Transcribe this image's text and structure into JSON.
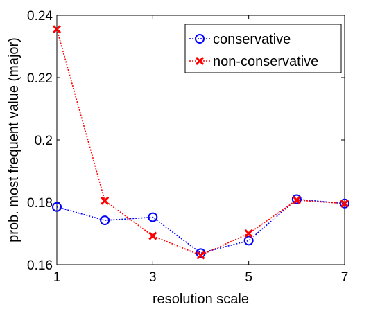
{
  "chart_data": {
    "type": "line",
    "xlabel": "resolution scale",
    "ylabel": "prob. most frequent value (major)",
    "xlim": [
      1,
      7
    ],
    "ylim": [
      0.16,
      0.24
    ],
    "xticks": [
      1,
      3,
      5,
      7
    ],
    "xtick_labels": [
      "1",
      "3",
      "5",
      "7"
    ],
    "yticks": [
      0.16,
      0.18,
      0.2,
      0.22,
      0.24
    ],
    "ytick_labels": [
      "0.16",
      "0.18",
      "0.2",
      "0.22",
      "0.24"
    ],
    "grid": false,
    "legend_position": "top-right",
    "x": [
      1,
      2,
      3,
      4,
      5,
      6,
      7
    ],
    "series": [
      {
        "name": "conservative",
        "values": [
          0.1785,
          0.1742,
          0.1752,
          0.1637,
          0.1677,
          0.181,
          0.1796
        ],
        "color": "#0000ff",
        "marker": "circle"
      },
      {
        "name": "non-conservative",
        "values": [
          0.2355,
          0.1805,
          0.1692,
          0.163,
          0.17,
          0.1807,
          0.1796
        ],
        "color": "#ff0000",
        "marker": "cross"
      }
    ]
  }
}
